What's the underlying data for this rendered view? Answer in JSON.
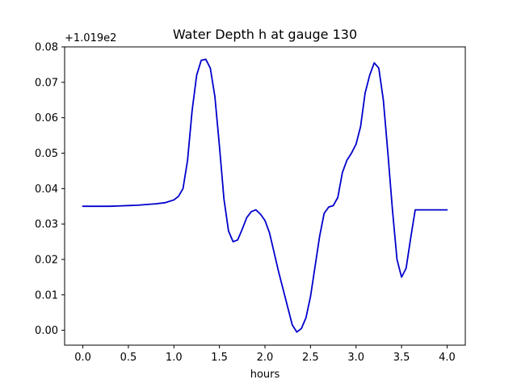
{
  "chart_data": {
    "type": "line",
    "title": "Water Depth h at gauge 130",
    "xlabel": "hours",
    "ylabel": "",
    "y_offset_label": "+1.019e2",
    "xlim": [
      -0.2,
      4.2
    ],
    "ylim": [
      -0.0042,
      0.08
    ],
    "x_ticks": [
      0.0,
      0.5,
      1.0,
      1.5,
      2.0,
      2.5,
      3.0,
      3.5,
      4.0
    ],
    "x_tick_labels": [
      "0.0",
      "0.5",
      "1.0",
      "1.5",
      "2.0",
      "2.5",
      "3.0",
      "3.5",
      "4.0"
    ],
    "y_ticks": [
      0.0,
      0.01,
      0.02,
      0.03,
      0.04,
      0.05,
      0.06,
      0.07,
      0.08
    ],
    "y_tick_labels": [
      "0.00",
      "0.01",
      "0.02",
      "0.03",
      "0.04",
      "0.05",
      "0.06",
      "0.07",
      "0.08"
    ],
    "grid": false,
    "series": [
      {
        "color": "#0000cc",
        "x": [
          0.0,
          0.1,
          0.2,
          0.3,
          0.4,
          0.5,
          0.6,
          0.7,
          0.8,
          0.9,
          1.0,
          1.05,
          1.1,
          1.15,
          1.2,
          1.25,
          1.3,
          1.35,
          1.4,
          1.45,
          1.5,
          1.55,
          1.6,
          1.65,
          1.7,
          1.75,
          1.8,
          1.85,
          1.9,
          1.95,
          2.0,
          2.05,
          2.1,
          2.15,
          2.2,
          2.25,
          2.3,
          2.35,
          2.4,
          2.45,
          2.5,
          2.55,
          2.6,
          2.65,
          2.7,
          2.75,
          2.8,
          2.85,
          2.9,
          2.95,
          3.0,
          3.05,
          3.1,
          3.15,
          3.2,
          3.25,
          3.3,
          3.35,
          3.4,
          3.45,
          3.5,
          3.55,
          3.6,
          3.65,
          3.7,
          3.75,
          3.8,
          3.85,
          3.9,
          3.95,
          4.0
        ],
        "y": [
          0.035,
          0.035,
          0.035,
          0.035,
          0.0351,
          0.0352,
          0.0353,
          0.0355,
          0.0357,
          0.036,
          0.0368,
          0.0378,
          0.04,
          0.048,
          0.062,
          0.072,
          0.0762,
          0.0765,
          0.074,
          0.066,
          0.052,
          0.037,
          0.028,
          0.025,
          0.0255,
          0.0285,
          0.0318,
          0.0335,
          0.034,
          0.0328,
          0.031,
          0.0275,
          0.022,
          0.0165,
          0.0115,
          0.0065,
          0.0015,
          -0.0005,
          0.0005,
          0.0035,
          0.0095,
          0.018,
          0.0265,
          0.033,
          0.0348,
          0.0352,
          0.0375,
          0.0445,
          0.048,
          0.05,
          0.0525,
          0.0575,
          0.067,
          0.072,
          0.0755,
          0.074,
          0.065,
          0.05,
          0.034,
          0.02,
          0.015,
          0.0175,
          0.026,
          0.034,
          0.034,
          0.034,
          0.034,
          0.034,
          0.034,
          0.034,
          0.034
        ]
      }
    ]
  }
}
